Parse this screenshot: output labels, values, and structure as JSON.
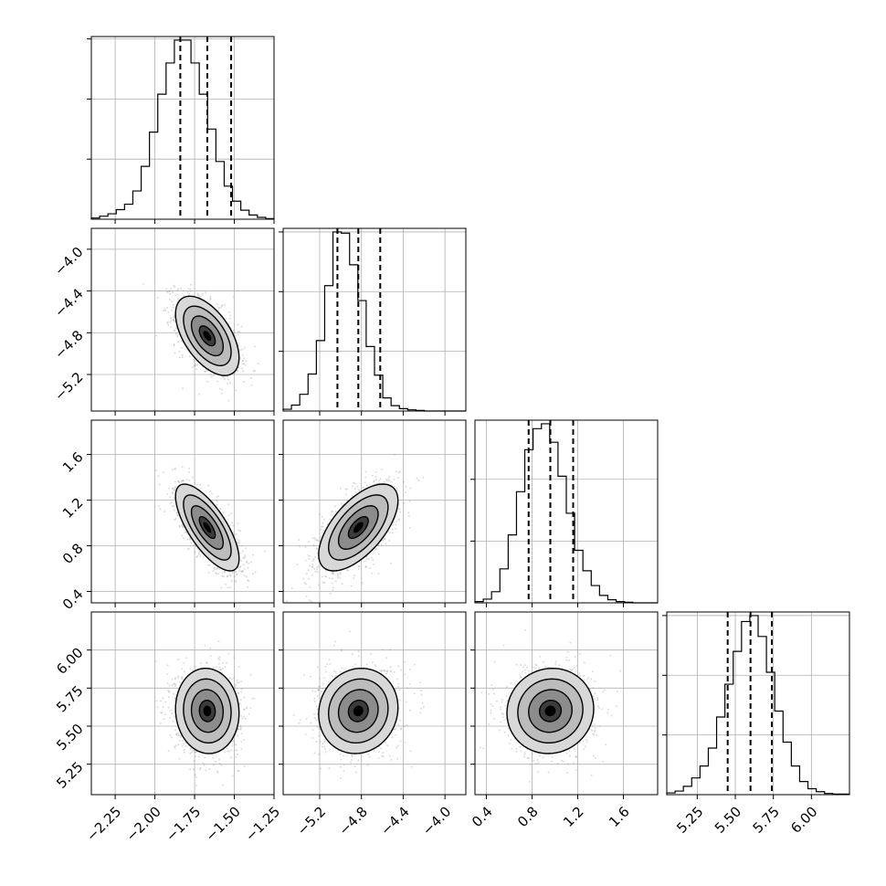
{
  "chart_data": {
    "type": "corner",
    "colors": {
      "line": "#000000",
      "grid": "#b0b0b0",
      "scatter": "#9a9a9a",
      "background": "#ffffff"
    },
    "grid": true,
    "parameters": [
      {
        "index": 0,
        "range": [
          -2.4,
          -1.25
        ],
        "ticks": [
          "-2.25",
          "-2.00",
          "-1.75",
          "-1.50",
          "-1.25"
        ],
        "tick_values": [
          -2.25,
          -2.0,
          -1.75,
          -1.5,
          -1.25
        ],
        "quantiles": [
          -1.84,
          -1.67,
          -1.52
        ],
        "center": -1.67,
        "sd": 0.1,
        "histogram": {
          "bins": 22,
          "counts": [
            2,
            5,
            9,
            16,
            25,
            47,
            88,
            145,
            208,
            260,
            298,
            298,
            260,
            208,
            150,
            96,
            55,
            30,
            15,
            7,
            3,
            1
          ]
        }
      },
      {
        "index": 1,
        "range": [
          -5.55,
          -3.8
        ],
        "ticks": [
          "-5.2",
          "-4.8",
          "-4.4",
          "-4.0"
        ],
        "tick_values": [
          -5.2,
          -4.8,
          -4.4,
          -4.0
        ],
        "quantiles": [
          -5.03,
          -4.83,
          -4.62
        ],
        "center": -4.83,
        "sd": 0.19,
        "histogram": {
          "bins": 22,
          "counts": [
            3,
            10,
            28,
            62,
            118,
            210,
            300,
            298,
            245,
            185,
            108,
            60,
            22,
            9,
            4,
            2,
            1,
            0,
            0,
            0,
            0,
            0
          ]
        }
      },
      {
        "index": 2,
        "range": [
          0.3,
          1.9
        ],
        "ticks": [
          "0.4",
          "0.8",
          "1.2",
          "1.6"
        ],
        "tick_values": [
          0.4,
          0.8,
          1.2,
          1.6
        ],
        "quantiles": [
          0.77,
          0.96,
          1.16
        ],
        "center": 0.96,
        "sd": 0.19,
        "histogram": {
          "bins": 22,
          "counts": [
            2,
            6,
            18,
            55,
            110,
            180,
            248,
            282,
            290,
            260,
            205,
            145,
            85,
            52,
            28,
            12,
            5,
            2,
            1,
            0,
            0,
            0
          ]
        }
      },
      {
        "index": 3,
        "range": [
          5.05,
          6.25
        ],
        "ticks": [
          "5.25",
          "5.50",
          "5.75",
          "6.00"
        ],
        "tick_values": [
          5.25,
          5.5,
          5.75,
          6.0
        ],
        "quantiles": [
          5.45,
          5.6,
          5.74
        ],
        "center": 5.6,
        "sd": 0.14,
        "histogram": {
          "bins": 22,
          "counts": [
            3,
            6,
            14,
            28,
            48,
            78,
            130,
            185,
            240,
            290,
            300,
            265,
            205,
            140,
            88,
            48,
            22,
            10,
            5,
            2,
            1,
            1
          ]
        }
      }
    ],
    "correlations": {
      "1,0": -0.55,
      "2,0": -0.72,
      "2,1": 0.62,
      "3,0": -0.05,
      "3,1": 0.08,
      "3,2": 0.05
    },
    "contour_levels_sigma": [
      0.5,
      1.0,
      1.5,
      2.0
    ]
  }
}
